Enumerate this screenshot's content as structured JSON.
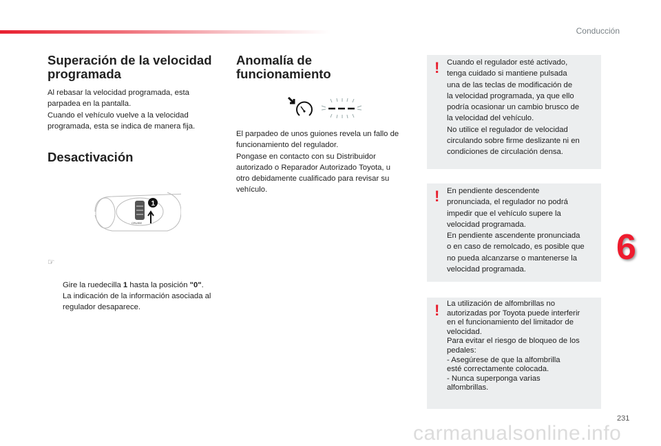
{
  "header": {
    "section": "Conducción"
  },
  "col1": {
    "title1": "Superación de la velocidad\nprogramada",
    "text1": "Al rebasar la velocidad programada, esta\nparpadea en la pantalla.\nCuando el vehículo vuelve a la velocidad\nprogramada, esta se indica de manera fija.",
    "title2": "Desactivación",
    "figure_label": "1",
    "figure_cruise": "CRUISE",
    "bullet_icon": "pointing-hand-icon",
    "step_pre": "Gire la ruedecilla ",
    "step_bold1": "1",
    "step_mid": " hasta la posición ",
    "step_bold2": "\"0\"",
    "step_post": ".\nLa indicación de la información asociada al\nregulador desaparece."
  },
  "col2": {
    "title": "Anomalía de\nfuncionamiento",
    "icon": "speedometer-icon",
    "text": "El parpadeo de unos guiones revela un fallo de\nfuncionamiento del regulador.\nPongase en contacto con su Distribuidor\nautorizado o Reparador Autorizado Toyota, u\notro debidamente cualificado para revisar su\nvehículo."
  },
  "warnings": [
    {
      "icon": "!",
      "text": "Cuando el regulador esté activado,\ntenga cuidado si mantiene pulsada\nuna de las teclas de modificación de\nla velocidad programada, ya que ello\npodría ocasionar un cambio brusco de\nla velocidad del vehículo.\nNo utilice el regulador de velocidad\ncirculando sobre firme deslizante ni en\ncondiciones de circulación densa."
    },
    {
      "icon": "!",
      "text": "En pendiente descendente\npronunciada, el regulador no podrá\nimpedir que el vehículo supere la\nvelocidad programada.\nEn pendiente ascendente pronunciada\no en caso de remolcado, es posible que\nno pueda alcanzarse o mantenerse la\nvelocidad programada."
    },
    {
      "icon": "!",
      "text": "La utilización de alfombrillas no\nautorizadas por Toyota puede interferir\nen el funcionamiento del limitador de\nvelocidad.\nPara evitar el riesgo de bloqueo de los\npedales:\n-    Asegúrese de que la alfombrilla\n      esté correctamente colocada.\n-    Nunca superponga varias\n      alfombrillas."
    }
  ],
  "chapter": "6",
  "page_number": "231",
  "watermark": "carmanualsonline.info",
  "colors": {
    "accent": "#e8202f",
    "box": "#eceeef"
  }
}
